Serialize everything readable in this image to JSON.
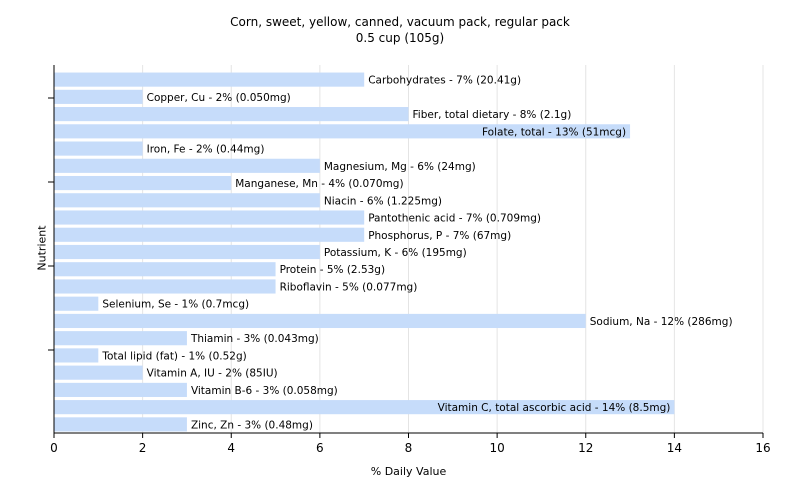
{
  "chart_data": {
    "type": "bar",
    "orientation": "horizontal",
    "title": "Corn, sweet, yellow, canned, vacuum pack, regular pack",
    "subtitle": "0.5 cup (105g)",
    "xlabel": "% Daily Value",
    "ylabel": "Nutrient",
    "xlim": [
      0,
      16
    ],
    "xticks": [
      0,
      2,
      4,
      6,
      8,
      10,
      12,
      14,
      16
    ],
    "grid": true,
    "bar_color": "#c6dcfa",
    "categories": [
      "Carbohydrates",
      "Copper, Cu",
      "Fiber, total dietary",
      "Folate, total",
      "Iron, Fe",
      "Magnesium, Mg",
      "Manganese, Mn",
      "Niacin",
      "Pantothenic acid",
      "Phosphorus, P",
      "Potassium, K",
      "Protein",
      "Riboflavin",
      "Selenium, Se",
      "Sodium, Na",
      "Thiamin",
      "Total lipid (fat)",
      "Vitamin A, IU",
      "Vitamin B-6",
      "Vitamin C, total ascorbic acid",
      "Zinc, Zn"
    ],
    "values": [
      7,
      2,
      8,
      13,
      2,
      6,
      4,
      6,
      7,
      7,
      6,
      5,
      5,
      1,
      12,
      3,
      1,
      2,
      3,
      14,
      3
    ],
    "labels": [
      "Carbohydrates - 7% (20.41g)",
      "Copper, Cu - 2% (0.050mg)",
      "Fiber, total dietary - 8% (2.1g)",
      "Folate, total - 13% (51mcg)",
      "Iron, Fe - 2% (0.44mg)",
      "Magnesium, Mg - 6% (24mg)",
      "Manganese, Mn - 4% (0.070mg)",
      "Niacin - 6% (1.225mg)",
      "Pantothenic acid - 7% (0.709mg)",
      "Phosphorus, P - 7% (67mg)",
      "Potassium, K - 6% (195mg)",
      "Protein - 5% (2.53g)",
      "Riboflavin - 5% (0.077mg)",
      "Selenium, Se - 1% (0.7mcg)",
      "Sodium, Na - 12% (286mg)",
      "Thiamin - 3% (0.043mg)",
      "Total lipid (fat) - 1% (0.52g)",
      "Vitamin A, IU - 2% (85IU)",
      "Vitamin B-6 - 3% (0.058mg)",
      "Vitamin C, total ascorbic acid - 14% (8.5mg)",
      "Zinc, Zn - 3% (0.48mg)"
    ]
  }
}
